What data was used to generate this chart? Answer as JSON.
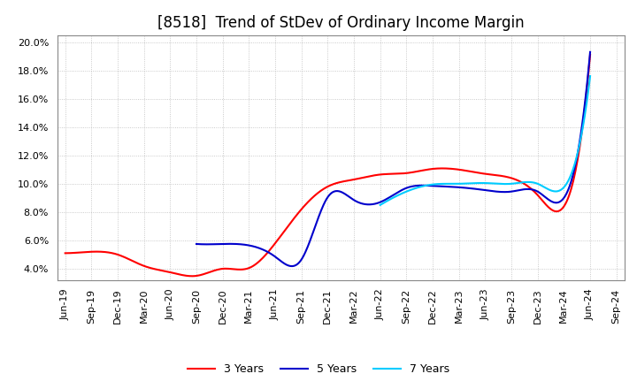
{
  "title": "[8518]  Trend of StDev of Ordinary Income Margin",
  "x_labels": [
    "Jun-19",
    "Sep-19",
    "Dec-19",
    "Mar-20",
    "Jun-20",
    "Sep-20",
    "Dec-20",
    "Mar-21",
    "Jun-21",
    "Sep-21",
    "Dec-21",
    "Mar-22",
    "Jun-22",
    "Sep-22",
    "Dec-22",
    "Mar-23",
    "Jun-23",
    "Sep-23",
    "Dec-23",
    "Mar-24",
    "Jun-24",
    "Sep-24"
  ],
  "series": {
    "3 Years": {
      "color": "#ff0000",
      "data": [
        5.1,
        5.2,
        5.0,
        4.2,
        3.75,
        3.5,
        4.0,
        4.05,
        5.8,
        8.2,
        9.8,
        10.3,
        10.65,
        10.75,
        11.05,
        11.0,
        10.7,
        10.4,
        9.2,
        8.4,
        19.1,
        null
      ]
    },
    "5 Years": {
      "color": "#0000cc",
      "data": [
        null,
        null,
        null,
        null,
        null,
        5.75,
        5.75,
        5.65,
        4.85,
        4.65,
        9.05,
        8.85,
        8.7,
        9.7,
        9.85,
        9.75,
        9.55,
        9.45,
        9.45,
        9.0,
        19.3,
        null
      ]
    },
    "7 Years": {
      "color": "#00ccff",
      "data": [
        null,
        null,
        null,
        null,
        null,
        null,
        null,
        null,
        null,
        null,
        null,
        null,
        8.5,
        9.45,
        9.95,
        10.0,
        10.05,
        10.0,
        10.0,
        9.75,
        17.6,
        null
      ]
    },
    "10 Years": {
      "color": "#006600",
      "data": [
        null,
        null,
        null,
        null,
        null,
        null,
        null,
        null,
        null,
        null,
        null,
        null,
        null,
        null,
        null,
        null,
        null,
        null,
        null,
        null,
        null,
        null
      ]
    }
  },
  "ylim": [
    3.2,
    20.5
  ],
  "yticks": [
    4.0,
    6.0,
    8.0,
    10.0,
    12.0,
    14.0,
    16.0,
    18.0,
    20.0
  ],
  "background_color": "#ffffff",
  "grid_color": "#aaaaaa",
  "title_fontsize": 12,
  "tick_fontsize": 8
}
